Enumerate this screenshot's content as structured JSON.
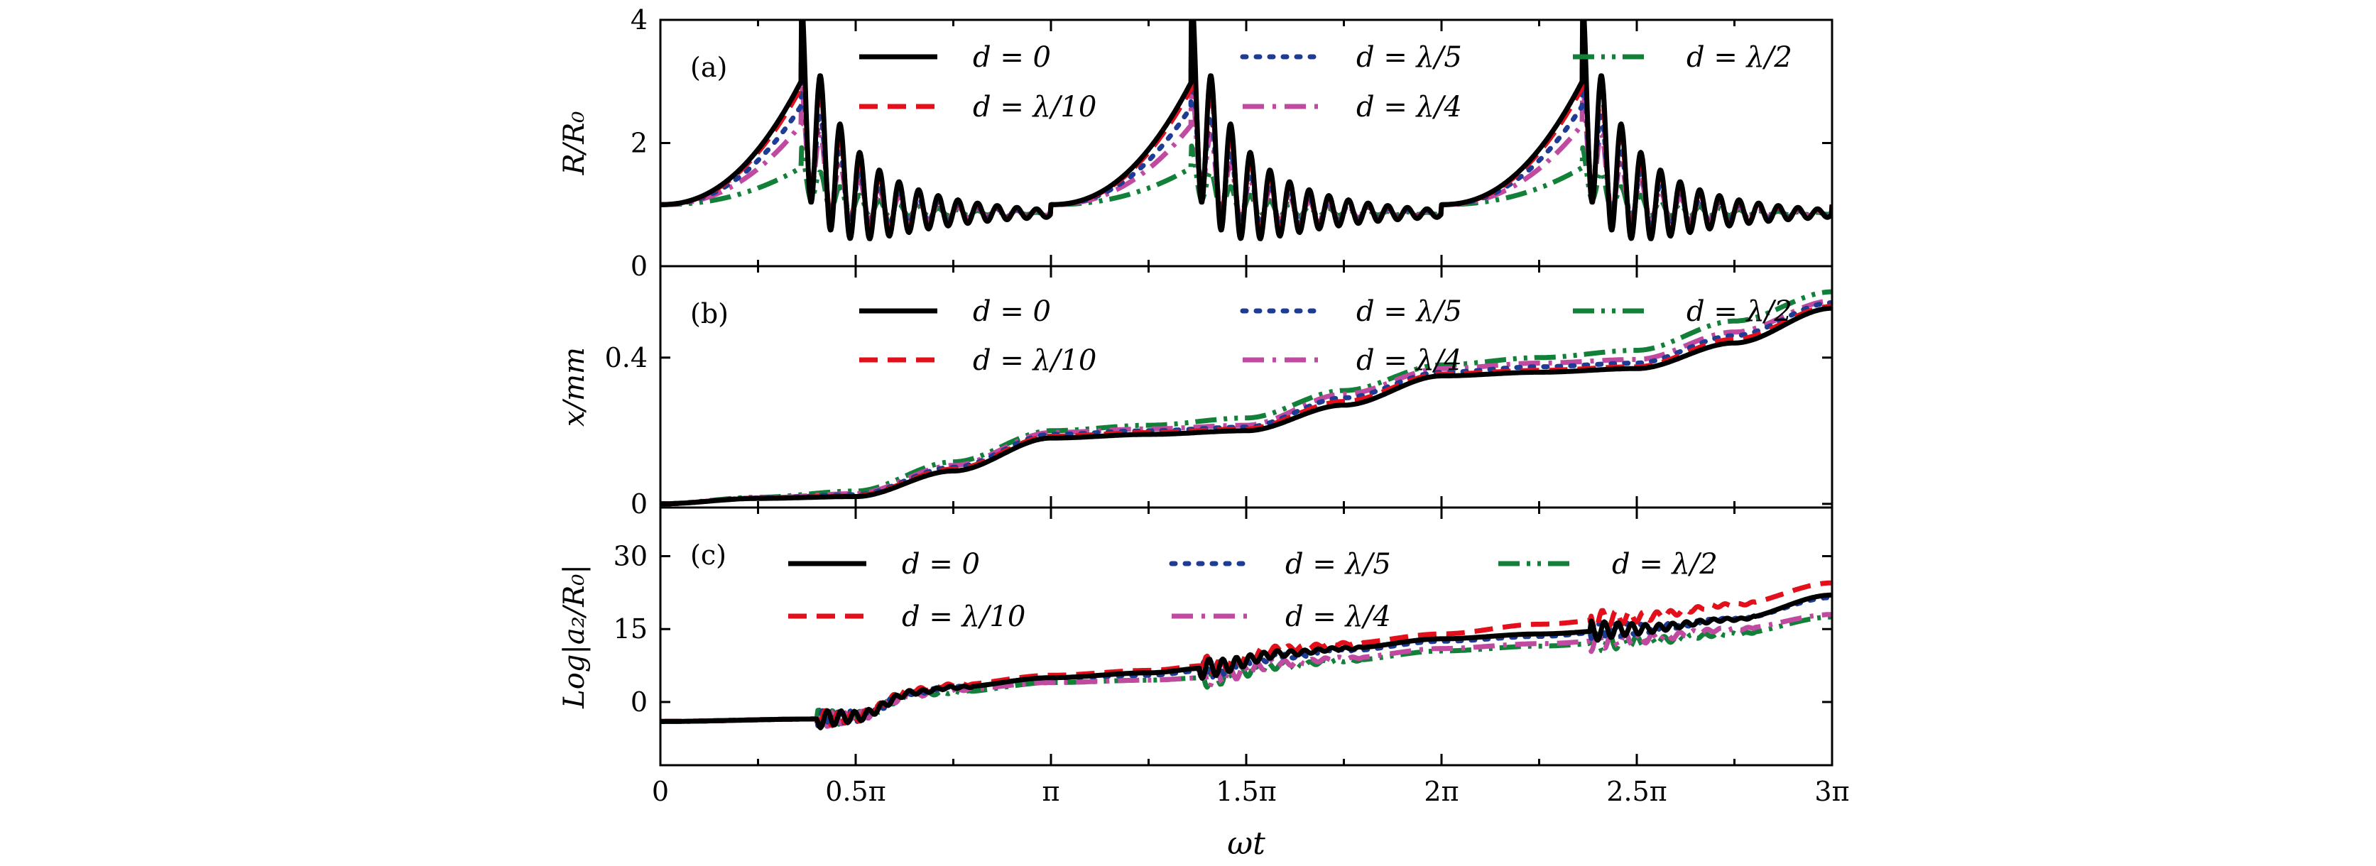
{
  "chart_data": [
    {
      "type": "line",
      "panel_label": "(a)",
      "ylabel": "R/R₀",
      "xlabel": "",
      "xlim": [
        0,
        3
      ],
      "ylim": [
        0,
        4
      ],
      "yticks": [
        0,
        2,
        4
      ],
      "ytick_labels": [
        "0",
        "2",
        "4"
      ],
      "xticks": [
        0,
        0.5,
        1,
        1.5,
        2,
        2.5,
        3
      ],
      "x_unit": "π",
      "legend": [
        "d = 0",
        "d = λ/10",
        "d = λ/5",
        "d = λ/4",
        "d = λ/2"
      ],
      "legend_placement": "top",
      "legend_layout": [
        [
          0,
          2,
          4
        ],
        [
          1,
          3
        ]
      ],
      "series": [
        {
          "name": "d = 0",
          "color": "#000000",
          "style": "solid",
          "peak": 3.0,
          "osc_amp": 1.5
        },
        {
          "name": "d = λ/10",
          "color": "#e3101c",
          "style": "dashed",
          "peak": 2.9,
          "osc_amp": 1.3
        },
        {
          "name": "d = λ/5",
          "color": "#1f3c94",
          "style": "dotted",
          "peak": 2.6,
          "osc_amp": 0.9
        },
        {
          "name": "d = λ/4",
          "color": "#c04aa0",
          "style": "dashdot",
          "peak": 2.3,
          "osc_amp": 0.7
        },
        {
          "name": "d = λ/2",
          "color": "#13803a",
          "style": "dashdotdot",
          "peak": 1.6,
          "osc_amp": 0.35
        }
      ]
    },
    {
      "type": "line",
      "panel_label": "(b)",
      "ylabel": "x/mm",
      "xlabel": "",
      "xlim": [
        0,
        3
      ],
      "ylim": [
        -0.01,
        0.65
      ],
      "yticks": [
        0,
        0.4
      ],
      "ytick_labels": [
        "0",
        "0.4"
      ],
      "xticks": [
        0,
        0.5,
        1,
        1.5,
        2,
        2.5,
        3
      ],
      "x_unit": "π",
      "legend": [
        "d = 0",
        "d = λ/10",
        "d = λ/5",
        "d = λ/4",
        "d = λ/2"
      ],
      "legend_placement": "top",
      "legend_layout": [
        [
          0,
          2,
          4
        ],
        [
          1,
          3
        ]
      ],
      "series": [
        {
          "name": "d = 0",
          "color": "#000000",
          "style": "solid",
          "x": [
            0,
            0.25,
            0.5,
            0.75,
            1,
            1.25,
            1.5,
            1.75,
            2,
            2.25,
            2.5,
            2.75,
            3
          ],
          "y": [
            0.0,
            0.015,
            0.02,
            0.09,
            0.18,
            0.19,
            0.2,
            0.27,
            0.35,
            0.36,
            0.37,
            0.44,
            0.535
          ]
        },
        {
          "name": "d = λ/10",
          "color": "#e3101c",
          "style": "dashed",
          "x": [
            0,
            0.25,
            0.5,
            0.75,
            1,
            1.25,
            1.5,
            1.75,
            2,
            2.25,
            2.5,
            2.75,
            3
          ],
          "y": [
            0.0,
            0.015,
            0.022,
            0.095,
            0.185,
            0.195,
            0.205,
            0.28,
            0.355,
            0.365,
            0.375,
            0.45,
            0.54
          ]
        },
        {
          "name": "d = λ/5",
          "color": "#1f3c94",
          "style": "dotted",
          "x": [
            0,
            0.25,
            0.5,
            0.75,
            1,
            1.25,
            1.5,
            1.75,
            2,
            2.25,
            2.5,
            2.75,
            3
          ],
          "y": [
            0.0,
            0.016,
            0.025,
            0.1,
            0.19,
            0.2,
            0.21,
            0.29,
            0.36,
            0.375,
            0.385,
            0.46,
            0.55
          ]
        },
        {
          "name": "d = λ/4",
          "color": "#c04aa0",
          "style": "dashdot",
          "x": [
            0,
            0.25,
            0.5,
            0.75,
            1,
            1.25,
            1.5,
            1.75,
            2,
            2.25,
            2.5,
            2.75,
            3
          ],
          "y": [
            0.0,
            0.016,
            0.028,
            0.105,
            0.195,
            0.205,
            0.215,
            0.3,
            0.37,
            0.385,
            0.395,
            0.47,
            0.555
          ]
        },
        {
          "name": "d = λ/2",
          "color": "#13803a",
          "style": "dashdotdot",
          "x": [
            0,
            0.25,
            0.5,
            0.75,
            1,
            1.25,
            1.5,
            1.75,
            2,
            2.25,
            2.5,
            2.75,
            3
          ],
          "y": [
            0.0,
            0.018,
            0.035,
            0.115,
            0.2,
            0.215,
            0.235,
            0.31,
            0.38,
            0.4,
            0.42,
            0.5,
            0.58
          ]
        }
      ]
    },
    {
      "type": "line",
      "panel_label": "(c)",
      "ylabel": "Log|a₂/R₀|",
      "xlabel": "ωt",
      "xlim": [
        0,
        3
      ],
      "ylim": [
        -13,
        40
      ],
      "yticks": [
        0,
        15,
        30
      ],
      "ytick_labels": [
        "0",
        "15",
        "30"
      ],
      "xticks": [
        0,
        0.5,
        1,
        1.5,
        2,
        2.5,
        3
      ],
      "xtick_labels": [
        "0",
        "0.5π",
        "π",
        "1.5π",
        "2π",
        "2.5π",
        "3π"
      ],
      "x_unit": "π",
      "legend": [
        "d = 0",
        "d = λ/10",
        "d = λ/5",
        "d = λ/4",
        "d = λ/2"
      ],
      "legend_placement": "top",
      "legend_layout": [
        [
          0,
          2,
          4
        ],
        [
          1,
          3
        ]
      ],
      "series": [
        {
          "name": "d = 0",
          "color": "#000000",
          "style": "solid",
          "x": [
            0,
            0.4,
            0.5,
            0.65,
            0.75,
            1,
            1.25,
            1.4,
            1.6,
            1.75,
            2,
            2.25,
            2.5,
            2.75,
            3
          ],
          "y": [
            -4,
            -3.5,
            -3,
            2,
            3,
            5,
            6,
            7,
            10,
            11,
            13,
            14,
            15,
            17,
            22
          ]
        },
        {
          "name": "d = λ/10",
          "color": "#e3101c",
          "style": "dashed",
          "x": [
            0,
            0.4,
            0.5,
            0.65,
            0.75,
            1,
            1.25,
            1.4,
            1.6,
            1.75,
            2,
            2.25,
            2.5,
            2.75,
            3
          ],
          "y": [
            -4,
            -3.5,
            -3,
            2.5,
            3.5,
            5.5,
            6.5,
            7.5,
            11,
            12,
            14,
            16,
            17.5,
            20,
            24.5
          ]
        },
        {
          "name": "d = λ/5",
          "color": "#1f3c94",
          "style": "dotted",
          "x": [
            0,
            0.4,
            0.5,
            0.65,
            0.75,
            1,
            1.25,
            1.4,
            1.6,
            1.75,
            2,
            2.25,
            2.5,
            2.75,
            3
          ],
          "y": [
            -4,
            -3.5,
            -3,
            2,
            3,
            5,
            5.5,
            6.5,
            9.5,
            10.5,
            12.5,
            13.5,
            15,
            17,
            21.5
          ]
        },
        {
          "name": "d = λ/4",
          "color": "#c04aa0",
          "style": "dashdot",
          "x": [
            0,
            0.4,
            0.5,
            0.65,
            0.75,
            1,
            1.25,
            1.4,
            1.6,
            1.75,
            2,
            2.25,
            2.5,
            2.75,
            3
          ],
          "y": [
            -4,
            -3.5,
            -3,
            1.5,
            2.5,
            4,
            4.5,
            5,
            8,
            9,
            11,
            12,
            13,
            15,
            18
          ]
        },
        {
          "name": "d = λ/2",
          "color": "#13803a",
          "style": "dashdotdot",
          "x": [
            0,
            0.4,
            0.5,
            0.65,
            0.75,
            1,
            1.25,
            1.4,
            1.6,
            1.75,
            2,
            2.25,
            2.5,
            2.75,
            3
          ],
          "y": [
            -4,
            -3.5,
            -3,
            1.5,
            2,
            4,
            4.5,
            5,
            7.5,
            8.5,
            10.5,
            11.5,
            12.5,
            14,
            17.5
          ]
        }
      ]
    }
  ]
}
